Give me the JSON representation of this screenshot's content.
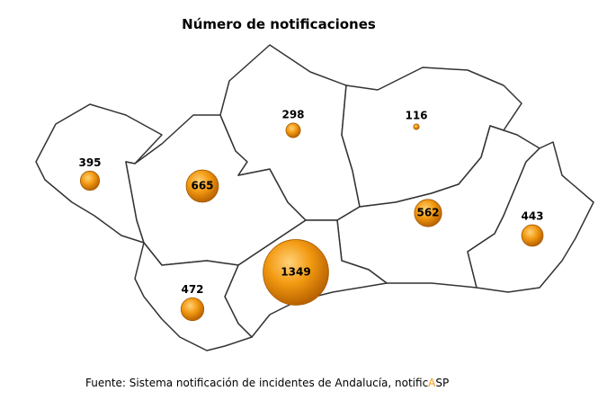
{
  "title": "Número de notificaciones",
  "bubbles": [
    {
      "value": 395
    },
    {
      "value": 665
    },
    {
      "value": 298
    },
    {
      "value": 116
    },
    {
      "value": 562
    },
    {
      "value": 443
    },
    {
      "value": 1349
    },
    {
      "value": 472
    }
  ],
  "source": {
    "text": "Fuente: Sistema notificación de incidentes de Andalucía, notific",
    "highlight": "A",
    "suffix": "SP"
  }
}
